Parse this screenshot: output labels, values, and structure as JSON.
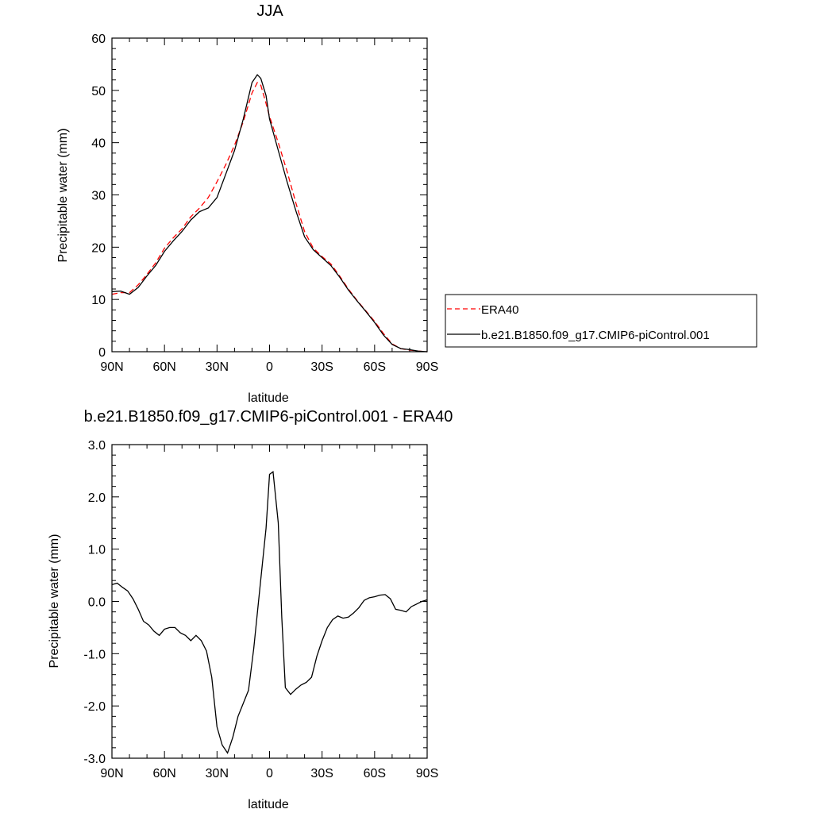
{
  "chart_data": [
    {
      "type": "line",
      "title": "JJA",
      "xlabel": "latitude",
      "ylabel": "Precipitable water (mm)",
      "xlim": [
        90,
        -90
      ],
      "ylim": [
        0,
        60
      ],
      "x_ticks": [
        90,
        60,
        30,
        0,
        -30,
        -60,
        -90
      ],
      "x_tick_labels": [
        "90N",
        "60N",
        "30N",
        "0",
        "30S",
        "60S",
        "90S"
      ],
      "y_ticks": [
        0,
        10,
        20,
        30,
        40,
        50,
        60
      ],
      "y_tick_labels": [
        "0",
        "10",
        "20",
        "30",
        "40",
        "50",
        "60"
      ],
      "legend_position": "right",
      "series": [
        {
          "name": "ERA40",
          "color": "#ff0000",
          "dash": "dashed",
          "x": [
            90,
            85,
            80,
            75,
            70,
            65,
            60,
            55,
            50,
            45,
            40,
            35,
            30,
            25,
            20,
            15,
            10,
            7,
            5,
            2,
            0,
            -5,
            -10,
            -15,
            -20,
            -25,
            -30,
            -35,
            -40,
            -45,
            -50,
            -55,
            -60,
            -65,
            -70,
            -75,
            -80,
            -85,
            -90
          ],
          "y": [
            11.0,
            11.3,
            11.3,
            12.8,
            14.8,
            17.0,
            19.8,
            21.8,
            23.5,
            25.8,
            27.5,
            29.5,
            32.5,
            35.8,
            39.5,
            44.0,
            49.5,
            51.5,
            51.0,
            47.5,
            45.0,
            40.0,
            34.5,
            28.5,
            23.0,
            19.8,
            18.2,
            16.8,
            14.5,
            12.0,
            9.8,
            7.8,
            5.8,
            3.5,
            1.5,
            0.6,
            0.3,
            0.1,
            0.0
          ]
        },
        {
          "name": "b.e21.B1850.f09_g17.CMIP6-piControl.001",
          "color": "#000000",
          "dash": "solid",
          "x": [
            90,
            85,
            80,
            75,
            70,
            65,
            60,
            55,
            50,
            45,
            40,
            35,
            30,
            25,
            20,
            15,
            10,
            7,
            5,
            2,
            0,
            -5,
            -10,
            -15,
            -20,
            -25,
            -30,
            -35,
            -40,
            -45,
            -50,
            -55,
            -60,
            -65,
            -70,
            -75,
            -80,
            -85,
            -90
          ],
          "y": [
            11.5,
            11.6,
            11.0,
            12.3,
            14.5,
            16.5,
            19.2,
            21.2,
            23.0,
            25.2,
            26.8,
            27.5,
            29.5,
            34.0,
            38.5,
            44.5,
            51.5,
            53.0,
            52.3,
            49.0,
            44.5,
            38.5,
            32.5,
            27.0,
            22.0,
            19.5,
            18.0,
            16.5,
            14.3,
            11.8,
            9.7,
            7.7,
            5.6,
            3.2,
            1.4,
            0.6,
            0.4,
            0.1,
            0.0
          ]
        }
      ]
    },
    {
      "type": "line",
      "title": "b.e21.B1850.f09_g17.CMIP6-piControl.001 - ERA40",
      "xlabel": "latitude",
      "ylabel": "Precipitable water (mm)",
      "xlim": [
        90,
        -90
      ],
      "ylim": [
        -3.0,
        3.0
      ],
      "x_ticks": [
        90,
        60,
        30,
        0,
        -30,
        -60,
        -90
      ],
      "x_tick_labels": [
        "90N",
        "60N",
        "30N",
        "0",
        "30S",
        "60S",
        "90S"
      ],
      "y_ticks": [
        -3.0,
        -2.0,
        -1.0,
        0.0,
        1.0,
        2.0,
        3.0
      ],
      "y_tick_labels": [
        "-3.0",
        "-2.0",
        "-1.0",
        "0.0",
        "1.0",
        "2.0",
        "3.0"
      ],
      "series": [
        {
          "color": "#000000",
          "dash": "solid",
          "x": [
            90,
            87,
            84,
            81,
            78,
            75,
            72,
            69,
            66,
            63,
            60,
            57,
            54,
            51,
            48,
            45,
            42,
            39,
            36,
            33,
            30,
            27,
            24,
            21,
            18,
            15,
            12,
            9,
            6,
            4,
            2,
            0,
            -2,
            -5,
            -7,
            -9,
            -12,
            -15,
            -18,
            -21,
            -24,
            -27,
            -30,
            -33,
            -36,
            -39,
            -42,
            -45,
            -48,
            -51,
            -54,
            -57,
            -60,
            -63,
            -66,
            -69,
            -72,
            -75,
            -78,
            -81,
            -84,
            -87,
            -90
          ],
          "y": [
            0.32,
            0.35,
            0.27,
            0.2,
            0.05,
            -0.15,
            -0.38,
            -0.45,
            -0.57,
            -0.65,
            -0.53,
            -0.5,
            -0.5,
            -0.6,
            -0.65,
            -0.75,
            -0.65,
            -0.75,
            -0.95,
            -1.45,
            -2.4,
            -2.75,
            -2.9,
            -2.6,
            -2.2,
            -1.95,
            -1.7,
            -0.9,
            0.1,
            0.75,
            1.4,
            2.43,
            2.48,
            1.5,
            -0.3,
            -1.65,
            -1.78,
            -1.68,
            -1.6,
            -1.55,
            -1.45,
            -1.05,
            -0.75,
            -0.5,
            -0.35,
            -0.28,
            -0.32,
            -0.3,
            -0.22,
            -0.12,
            0.02,
            0.07,
            0.09,
            0.12,
            0.13,
            0.05,
            -0.15,
            -0.17,
            -0.2,
            -0.1,
            -0.05,
            0.0,
            0.03
          ]
        }
      ]
    }
  ]
}
